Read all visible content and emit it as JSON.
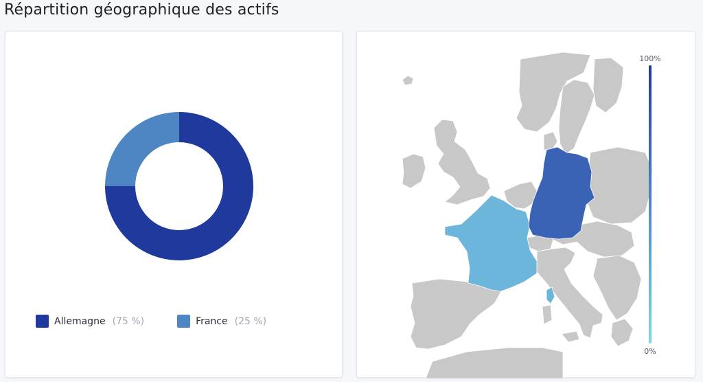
{
  "page": {
    "title": "Répartition géographique des actifs"
  },
  "chart_data": [
    {
      "type": "pie",
      "variant": "donut",
      "categories": [
        "Allemagne",
        "France"
      ],
      "values": [
        75,
        25
      ],
      "colors": [
        "#1f3a9c",
        "#4e86c4"
      ],
      "legend": [
        {
          "label": "Allemagne",
          "pct": "(75 %)"
        },
        {
          "label": "France",
          "pct": "(25 %)"
        }
      ],
      "legend_position": "bottom-left"
    },
    {
      "type": "choropleth",
      "regions": [
        {
          "name": "Allemagne",
          "value": 75,
          "color": "#3a62b5"
        },
        {
          "name": "France",
          "value": 25,
          "color": "#6bb6da"
        }
      ],
      "scale": {
        "min": 0,
        "max": 100,
        "min_label": "0%",
        "max_label": "100%",
        "color_low": "#7fd8ee",
        "color_high": "#1f3a9c"
      },
      "other_land_color": "#c8c8c8"
    }
  ]
}
